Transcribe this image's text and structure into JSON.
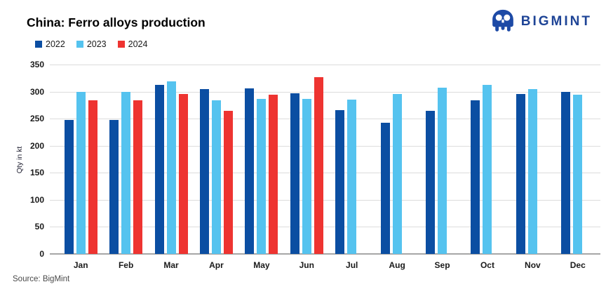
{
  "header": {
    "title": "China: Ferro alloys production",
    "brand": "BIGMINT"
  },
  "footer": {
    "source": "Source:  BigMint"
  },
  "colors": {
    "grid": "#dcdcdc",
    "zero_axis": "#a6a6a6",
    "logo": "#1e4496"
  },
  "chart_data": {
    "type": "bar",
    "title": "China: Ferro alloys production",
    "xlabel": "",
    "ylabel": "Qty in kt",
    "ylim": [
      0,
      350
    ],
    "ytick_step": 50,
    "grid": true,
    "legend_position": "top-left",
    "categories": [
      "Jan",
      "Feb",
      "Mar",
      "Apr",
      "May",
      "Jun",
      "Jul",
      "Aug",
      "Sep",
      "Oct",
      "Nov",
      "Dec"
    ],
    "series": [
      {
        "name": "2022",
        "color": "#0b4ea2",
        "values": [
          248,
          248,
          312,
          305,
          306,
          297,
          266,
          243,
          265,
          284,
          296,
          299
        ]
      },
      {
        "name": "2023",
        "color": "#55c3ef",
        "values": [
          300,
          300,
          319,
          284,
          287,
          286,
          285,
          295,
          307,
          312,
          305,
          294
        ]
      },
      {
        "name": "2024",
        "color": "#ee3431",
        "values": [
          284,
          284,
          295,
          265,
          294,
          327,
          null,
          null,
          null,
          null,
          null,
          null
        ]
      }
    ]
  }
}
